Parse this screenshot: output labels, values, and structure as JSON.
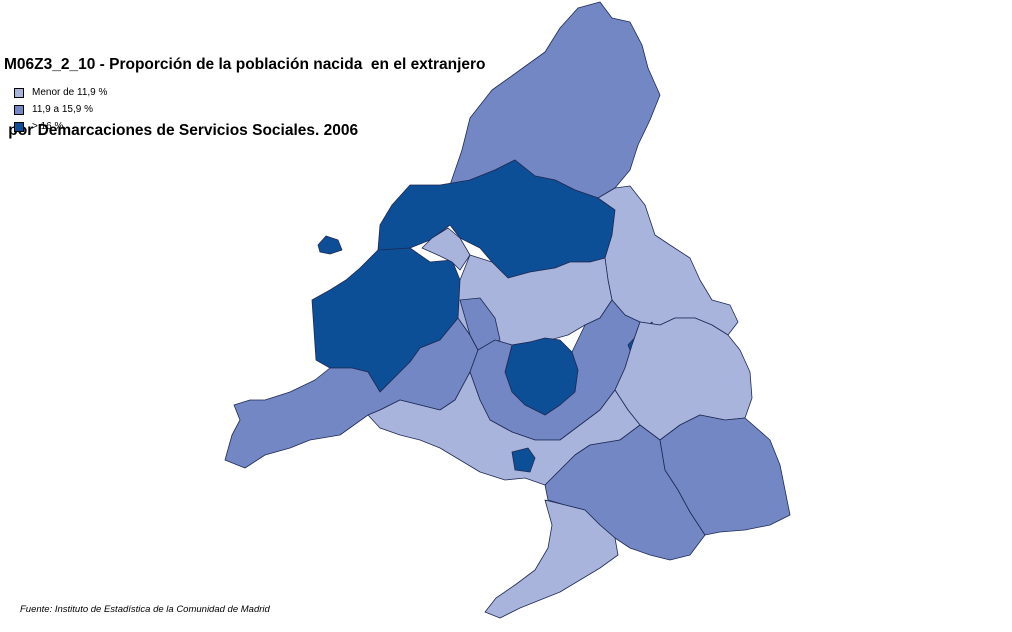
{
  "title": {
    "line1": "M06Z3_2_10 - Proporción de la población nacida  en el extranjero",
    "line2": " por Demarcaciones de Servicios Sociales. 2006"
  },
  "legend": [
    {
      "label": "Menor de 11,9 %",
      "color": "#a8b4dc"
    },
    {
      "label": "11,9 a 15,9 %",
      "color": "#7387c5"
    },
    {
      "label": "> 16 %",
      "color": "#0d4f96"
    }
  ],
  "source": "Fuente: Instituto de Estadística de la Comunidad de Madrid",
  "colors": {
    "low": "#a8b4dc",
    "mid": "#7387c5",
    "high": "#0d4f96",
    "border": "#1e2a55"
  }
}
